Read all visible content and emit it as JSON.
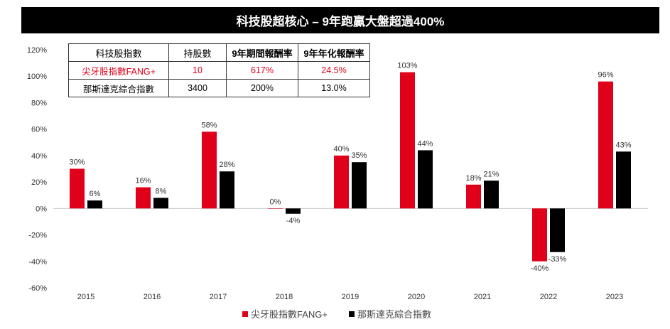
{
  "title": "科技股超核心 – 9年跑贏大盤超過400%",
  "table": {
    "headers": [
      "科技股指數",
      "持股數",
      "9年期間報酬率",
      "9年年化報酬率"
    ],
    "rows": [
      [
        "尖牙股指數FANG+",
        "10",
        "617%",
        "24.5%"
      ],
      [
        "那斯達克綜合指數",
        "3400",
        "200%",
        "13.0%"
      ]
    ]
  },
  "chart_data": {
    "type": "bar",
    "title": "科技股超核心 – 9年跑贏大盤超過400%",
    "categories": [
      "2015",
      "2016",
      "2017",
      "2018",
      "2019",
      "2020",
      "2021",
      "2022",
      "2023"
    ],
    "series": [
      {
        "name": "尖牙股指數FANG+",
        "color": "#e0001a",
        "values": [
          30,
          16,
          58,
          0,
          40,
          103,
          18,
          -40,
          96
        ]
      },
      {
        "name": "那斯達克綜合指數",
        "color": "#000000",
        "values": [
          6,
          8,
          28,
          -4,
          35,
          44,
          21,
          -33,
          43
        ]
      }
    ],
    "yticks": [
      "120%",
      "100%",
      "80%",
      "60%",
      "40%",
      "20%",
      "0%",
      "-20%",
      "-40%",
      "-60%"
    ],
    "ylim": [
      -60,
      120
    ],
    "ylabel": "",
    "xlabel": "",
    "legend": "bottom"
  }
}
